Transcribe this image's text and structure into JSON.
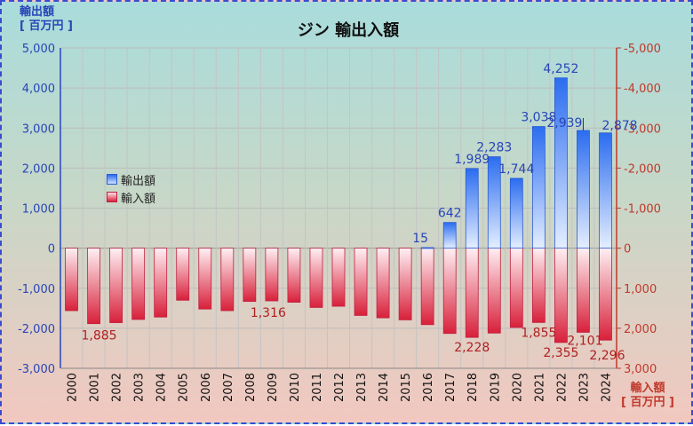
{
  "chart_data": {
    "type": "bar",
    "title": "ジン 輸出入額",
    "left_unit": [
      "輸出額",
      "[ 百万円 ]"
    ],
    "right_unit": [
      "輸入額",
      "[ 百万円 ]"
    ],
    "categories": [
      "2000",
      "2001",
      "2002",
      "2003",
      "2004",
      "2005",
      "2006",
      "2007",
      "2008",
      "2009",
      "2010",
      "2011",
      "2012",
      "2013",
      "2014",
      "2015",
      "2016",
      "2017",
      "2018",
      "2019",
      "2020",
      "2021",
      "2022",
      "2023",
      "2024"
    ],
    "series": [
      {
        "name": "輸出額",
        "values": [
          0,
          0,
          0,
          0,
          0,
          0,
          0,
          0,
          0,
          0,
          0,
          0,
          0,
          0,
          0,
          0,
          15,
          642,
          1989,
          2283,
          1744,
          3038,
          4252,
          2939,
          2878
        ]
      },
      {
        "name": "輸入額",
        "values": [
          1560,
          1885,
          1860,
          1780,
          1720,
          1300,
          1520,
          1560,
          1330,
          1316,
          1350,
          1480,
          1450,
          1680,
          1740,
          1790,
          1910,
          2130,
          2228,
          2120,
          1980,
          1855,
          2355,
          2101,
          2296
        ]
      }
    ],
    "ylim": [
      -3000,
      5000
    ],
    "yticks_left": [
      "5,000",
      "4,000",
      "3,000",
      "2,000",
      "1,000",
      "0",
      "-1,000",
      "-2,000",
      "-3,000"
    ],
    "yticks_right": [
      "-5,000",
      "-4,000",
      "-3,000",
      "-2,000",
      "-1,000",
      "0",
      "1,000",
      "2,000",
      "3,000"
    ],
    "export_labels": [
      {
        "year": "2016",
        "text": "15"
      },
      {
        "year": "2017",
        "text": "642"
      },
      {
        "year": "2018",
        "text": "1,989"
      },
      {
        "year": "2019",
        "text": "2,283"
      },
      {
        "year": "2020",
        "text": "1,744"
      },
      {
        "year": "2021",
        "text": "3,038"
      },
      {
        "year": "2022",
        "text": "4,252"
      },
      {
        "year": "2023",
        "text": "2,939"
      },
      {
        "year": "2024",
        "text": "2,878"
      }
    ],
    "import_labels": [
      {
        "year": "2001",
        "text": "1,885"
      },
      {
        "year": "2009",
        "text": "1,316"
      },
      {
        "year": "2018",
        "text": "2,228"
      },
      {
        "year": "2021",
        "text": "1,855"
      },
      {
        "year": "2022",
        "text": "2,355"
      },
      {
        "year": "2023",
        "text": "2,101"
      },
      {
        "year": "2024",
        "text": "2,296"
      }
    ],
    "legend": [
      "輸出額",
      "輸入額"
    ],
    "legend_position": "left-middle",
    "grid": true,
    "colors": {
      "export": "#2b6cf0",
      "import": "#d8203a",
      "left_axis": "#2845b8",
      "right_axis": "#c0392b"
    }
  }
}
